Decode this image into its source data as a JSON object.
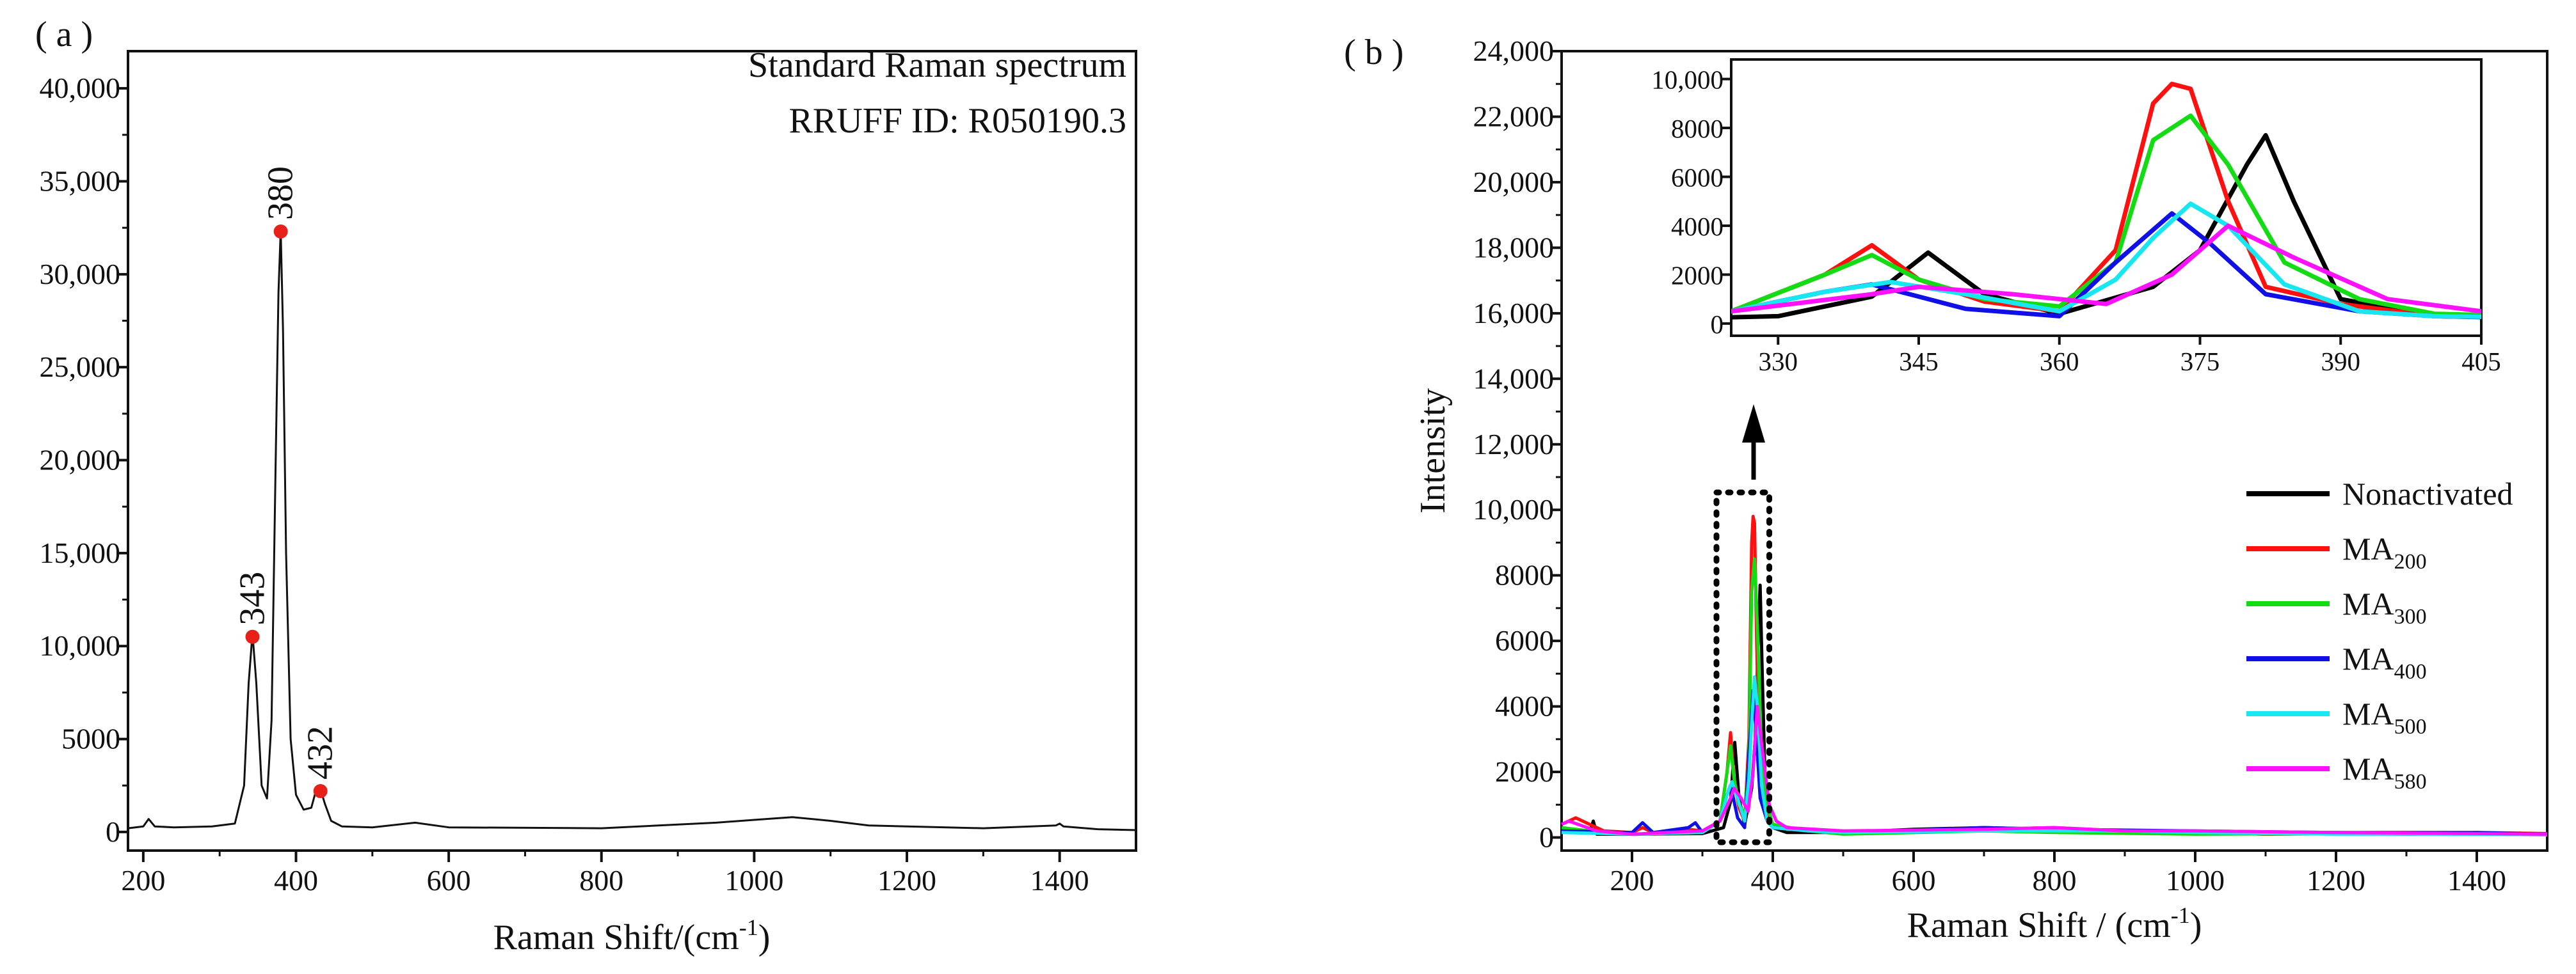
{
  "panel_a": {
    "label": "( a )",
    "title_line1": "Standard Raman spectrum",
    "title_line2": "RRUFF ID: R050190.3",
    "xlabel_main": "Raman Shift/(cm",
    "xlabel_sup": "-1",
    "xlabel_close": ")",
    "peak_labels": [
      "343",
      "380",
      "432"
    ]
  },
  "panel_b": {
    "label": "( b )",
    "ylabel": "Intensity",
    "xlabel_main": "Raman Shift / (cm",
    "xlabel_sup": "-1",
    "xlabel_close": ")",
    "legend": [
      {
        "name": "Nonactivated",
        "sub": ""
      },
      {
        "name": "MA",
        "sub": "200"
      },
      {
        "name": "MA",
        "sub": "300"
      },
      {
        "name": "MA",
        "sub": "400"
      },
      {
        "name": "MA",
        "sub": "500"
      },
      {
        "name": "MA",
        "sub": "580"
      }
    ]
  },
  "chart_data": [
    {
      "type": "line",
      "title": "Standard Raman spectrum",
      "subtitle": "RRUFF ID: R050190.3",
      "xlabel": "Raman Shift/(cm-1)",
      "ylabel": "",
      "xlim": [
        180,
        1500
      ],
      "ylim": [
        -1000,
        42000
      ],
      "xticks": [
        200,
        400,
        600,
        800,
        1000,
        1200,
        1400
      ],
      "yticks": [
        0,
        5000,
        10000,
        15000,
        20000,
        25000,
        30000,
        35000,
        40000
      ],
      "ytick_labels": [
        "0",
        "5000",
        "10,000",
        "15,000",
        "20,000",
        "25,000",
        "30,000",
        "35,000",
        "40,000"
      ],
      "series": [
        {
          "name": "Standard",
          "color": "#111111",
          "x": [
            180,
            200,
            207,
            215,
            240,
            290,
            320,
            332,
            338,
            343,
            348,
            355,
            362,
            368,
            373,
            377,
            380,
            383,
            387,
            393,
            400,
            410,
            420,
            426,
            432,
            438,
            446,
            460,
            500,
            556,
            600,
            800,
            950,
            1000,
            1050,
            1100,
            1150,
            1300,
            1395,
            1400,
            1405,
            1450,
            1500
          ],
          "y": [
            200,
            300,
            700,
            300,
            250,
            300,
            450,
            2500,
            8000,
            10700,
            8000,
            2500,
            1800,
            6000,
            19000,
            29000,
            32400,
            27000,
            15000,
            5000,
            2000,
            1200,
            1300,
            2200,
            2300,
            1500,
            600,
            300,
            250,
            500,
            250,
            200,
            500,
            650,
            800,
            600,
            350,
            200,
            350,
            450,
            300,
            150,
            100
          ]
        }
      ],
      "markers": [
        {
          "x": 343,
          "y": 10500,
          "label": "343"
        },
        {
          "x": 380,
          "y": 32300,
          "label": "380"
        },
        {
          "x": 432,
          "y": 2200,
          "label": "432"
        }
      ],
      "marker_color": "#e8201a"
    },
    {
      "type": "line",
      "xlabel": "Raman Shift / (cm-1)",
      "ylabel": "Intensity",
      "xlim": [
        100,
        1500
      ],
      "ylim": [
        -400,
        24000
      ],
      "xticks": [
        200,
        400,
        600,
        800,
        1000,
        1200,
        1400
      ],
      "yticks": [
        0,
        2000,
        4000,
        6000,
        8000,
        10000,
        12000,
        14000,
        16000,
        18000,
        20000,
        22000,
        24000
      ],
      "ytick_labels": [
        "0",
        "2000",
        "4000",
        "6000",
        "8000",
        "10,000",
        "12,000",
        "14,000",
        "16,000",
        "18,000",
        "20,000",
        "22,000",
        "24,000"
      ],
      "highlight_box_x": [
        320,
        395
      ],
      "series": [
        {
          "name": "Nonactivated",
          "color": "#000000",
          "x": [
            100,
            140,
            145,
            150,
            200,
            300,
            330,
            340,
            346,
            352,
            360,
            370,
            375,
            380,
            382,
            385,
            390,
            400,
            420,
            500,
            600,
            700,
            800,
            900,
            1000,
            1100,
            1200,
            1300,
            1400,
            1500
          ],
          "y": [
            300,
            150,
            500,
            100,
            100,
            120,
            300,
            1100,
            2900,
            1200,
            400,
            1500,
            3000,
            6500,
            7700,
            5000,
            1000,
            300,
            150,
            150,
            250,
            300,
            250,
            150,
            150,
            100,
            120,
            100,
            120,
            100
          ]
        },
        {
          "name": "MA200",
          "color": "#ff1010",
          "x": [
            100,
            120,
            160,
            200,
            215,
            230,
            280,
            300,
            325,
            335,
            340,
            345,
            352,
            360,
            366,
            370,
            372,
            374,
            378,
            382,
            390,
            400,
            450,
            500,
            600,
            700,
            800,
            900,
            1000,
            1100,
            1200,
            1300,
            1400,
            1500
          ],
          "y": [
            400,
            600,
            200,
            150,
            300,
            150,
            250,
            200,
            500,
            2000,
            3200,
            1800,
            900,
            500,
            3000,
            9000,
            9800,
            9600,
            5000,
            1500,
            800,
            300,
            200,
            150,
            200,
            250,
            300,
            200,
            150,
            100,
            150,
            100,
            150,
            120
          ]
        },
        {
          "name": "MA300",
          "color": "#14dc14",
          "x": [
            100,
            160,
            200,
            300,
            325,
            335,
            340,
            345,
            352,
            360,
            366,
            370,
            374,
            378,
            384,
            392,
            400,
            450,
            500,
            700,
            800,
            1000,
            1200,
            1400,
            1500
          ],
          "y": [
            300,
            150,
            100,
            150,
            500,
            2000,
            2800,
            1800,
            1000,
            700,
            2500,
            7500,
            8500,
            6500,
            2500,
            1000,
            400,
            200,
            100,
            200,
            150,
            100,
            120,
            100,
            80
          ]
        },
        {
          "name": "MA400",
          "color": "#1010e6",
          "x": [
            100,
            200,
            215,
            230,
            280,
            290,
            300,
            325,
            335,
            340,
            345,
            350,
            360,
            366,
            372,
            376,
            382,
            392,
            400,
            450,
            500,
            700,
            800,
            1000,
            1200,
            1400,
            1500
          ],
          "y": [
            200,
            150,
            450,
            150,
            300,
            450,
            150,
            500,
            1300,
            1600,
            1100,
            600,
            300,
            2500,
            4500,
            3300,
            1200,
            500,
            300,
            200,
            150,
            300,
            250,
            200,
            150,
            150,
            100
          ]
        },
        {
          "name": "MA500",
          "color": "#18e6f0",
          "x": [
            100,
            200,
            300,
            325,
            335,
            342,
            350,
            360,
            366,
            370,
            374,
            378,
            384,
            392,
            400,
            450,
            500,
            700,
            900,
            1000,
            1200,
            1400,
            1500
          ],
          "y": [
            150,
            100,
            150,
            500,
            1300,
            1700,
            1200,
            500,
            1800,
            3500,
            4900,
            4000,
            1600,
            500,
            300,
            200,
            150,
            200,
            200,
            150,
            100,
            100,
            80
          ]
        },
        {
          "name": "MA580",
          "color": "#ff10ff",
          "x": [
            100,
            110,
            150,
            200,
            300,
            325,
            340,
            345,
            355,
            365,
            372,
            378,
            385,
            395,
            405,
            420,
            500,
            700,
            800,
            900,
            1000,
            1200,
            1400,
            1500
          ],
          "y": [
            400,
            500,
            200,
            100,
            200,
            500,
            1200,
            1500,
            1200,
            800,
            2000,
            4000,
            2700,
            1000,
            500,
            300,
            200,
            250,
            300,
            200,
            200,
            150,
            120,
            100
          ]
        }
      ]
    },
    {
      "type": "line",
      "title": "inset",
      "xlim": [
        325,
        405
      ],
      "ylim": [
        -500,
        10800
      ],
      "xticks": [
        330,
        345,
        360,
        375,
        390,
        405
      ],
      "yticks": [
        0,
        2000,
        4000,
        6000,
        8000,
        10000
      ],
      "ytick_labels": [
        "0",
        "2000",
        "4000",
        "6000",
        "8000",
        "10,000"
      ],
      "series_ref": "same series as panel (b), x range 325-405"
    }
  ]
}
